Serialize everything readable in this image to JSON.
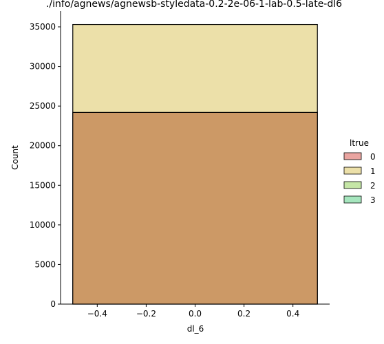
{
  "chart_data": {
    "type": "bar",
    "title": "./info/agnews/agnewsb-styledata-0.2-2e-06-1-lab-0.5-late-dl6",
    "xlabel": "dl_6",
    "ylabel": "Count",
    "xlim": [
      -0.55,
      0.55
    ],
    "ylim": [
      0,
      37000
    ],
    "xticks": [
      -0.4,
      -0.2,
      0.0,
      0.2,
      0.4
    ],
    "xtick_labels": [
      "−0.4",
      "−0.2",
      "0.0",
      "0.2",
      "0.4"
    ],
    "yticks": [
      0,
      5000,
      10000,
      15000,
      20000,
      25000,
      30000,
      35000
    ],
    "ytick_labels": [
      "0",
      "5000",
      "10000",
      "15000",
      "20000",
      "25000",
      "30000",
      "35000"
    ],
    "bin": [
      -0.5,
      0.5
    ],
    "legend": {
      "title": "ltrue",
      "placement": "right",
      "entries": [
        {
          "label": "0",
          "color": "#eaa5a1"
        },
        {
          "label": "1",
          "color": "#ece0a9"
        },
        {
          "label": "2",
          "color": "#c5e6a6"
        },
        {
          "label": "3",
          "color": "#a6e6be"
        }
      ]
    },
    "series": [
      {
        "name": "1",
        "value": 35300,
        "color": "#ece0a9"
      },
      {
        "name": "0",
        "value": 24200,
        "color": "#cc9966"
      }
    ],
    "grid": false
  }
}
